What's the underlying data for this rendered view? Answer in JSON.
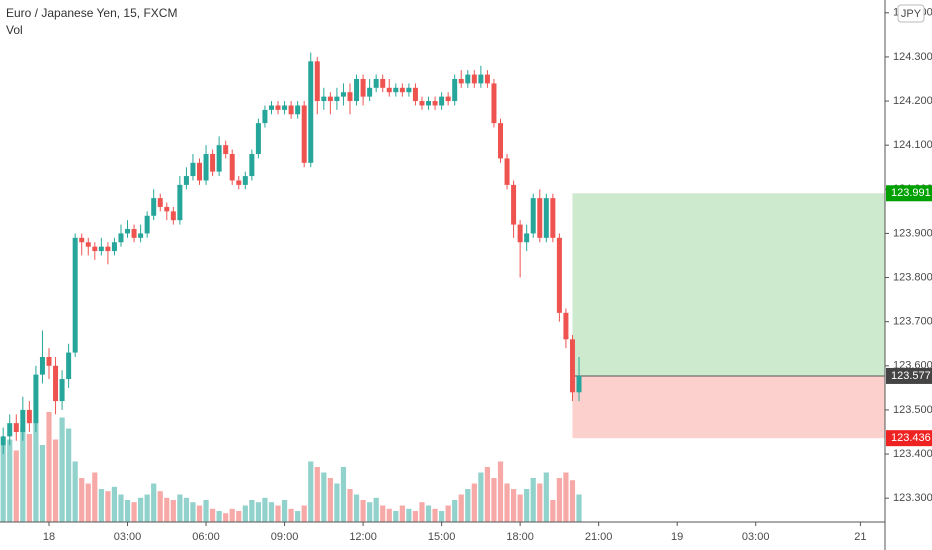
{
  "chart_data": {
    "type": "candlestick",
    "title": "Euro / Japanese Yen, 15, FXCM",
    "volume_label": "Vol",
    "currency_badge": "JPY",
    "x": [
      -1.75,
      -1.5,
      -1.25,
      -1,
      -0.75,
      -0.5,
      -0.25,
      0,
      0.25,
      0.5,
      0.75,
      1,
      1.25,
      1.5,
      1.75,
      2,
      2.25,
      2.5,
      2.75,
      3,
      3.25,
      3.5,
      3.75,
      4,
      4.25,
      4.5,
      4.75,
      5,
      5.25,
      5.5,
      5.75,
      6,
      6.25,
      6.5,
      6.75,
      7,
      7.25,
      7.5,
      7.75,
      8,
      8.25,
      8.5,
      8.75,
      9,
      9.25,
      9.5,
      9.75,
      10,
      10.25,
      10.5,
      10.75,
      11,
      11.25,
      11.5,
      11.75,
      12,
      12.25,
      12.5,
      12.75,
      13,
      13.25,
      13.5,
      13.75,
      14,
      14.25,
      14.5,
      14.75,
      15,
      15.25,
      15.5,
      15.75,
      16,
      16.25,
      16.5,
      16.75,
      17,
      17.25,
      17.5,
      17.75,
      18,
      18.25,
      18.5,
      18.75,
      19,
      19.25,
      19.5,
      19.75,
      20,
      20.25
    ],
    "open": [
      123.42,
      123.44,
      123.47,
      123.45,
      123.5,
      123.47,
      123.58,
      123.62,
      123.6,
      123.52,
      123.57,
      123.63,
      123.89,
      123.88,
      123.87,
      123.86,
      123.87,
      123.86,
      123.88,
      123.9,
      123.91,
      123.89,
      123.9,
      123.94,
      123.98,
      123.96,
      123.95,
      123.93,
      124.01,
      124.03,
      124.06,
      124.02,
      124.08,
      124.04,
      124.1,
      124.08,
      124.02,
      124.01,
      124.03,
      124.08,
      124.15,
      124.18,
      124.19,
      124.18,
      124.19,
      124.17,
      124.19,
      124.06,
      124.29,
      124.2,
      124.21,
      124.2,
      124.21,
      124.22,
      124.2,
      124.25,
      124.21,
      124.23,
      124.25,
      124.23,
      124.22,
      124.23,
      124.22,
      124.23,
      124.2,
      124.19,
      124.2,
      124.19,
      124.21,
      124.2,
      124.25,
      124.24,
      124.26,
      124.24,
      124.26,
      124.24,
      124.15,
      124.07,
      124.01,
      123.92,
      123.88,
      123.9,
      123.98,
      123.89,
      123.98,
      123.89,
      123.72,
      123.66,
      123.54
    ],
    "high": [
      123.46,
      123.49,
      123.49,
      123.53,
      123.52,
      123.6,
      123.68,
      123.64,
      123.62,
      123.59,
      123.65,
      123.9,
      123.9,
      123.89,
      123.88,
      123.89,
      123.88,
      123.89,
      123.92,
      123.93,
      123.92,
      123.92,
      123.95,
      124.0,
      123.99,
      123.97,
      123.96,
      124.03,
      124.05,
      124.08,
      124.07,
      124.1,
      124.09,
      124.12,
      124.11,
      124.09,
      124.03,
      124.04,
      124.09,
      124.16,
      124.19,
      124.2,
      124.2,
      124.2,
      124.2,
      124.2,
      124.2,
      124.31,
      124.3,
      124.23,
      124.22,
      124.23,
      124.24,
      124.24,
      124.26,
      124.26,
      124.25,
      124.26,
      124.26,
      124.25,
      124.24,
      124.24,
      124.24,
      124.24,
      124.21,
      124.21,
      124.21,
      124.22,
      124.22,
      124.26,
      124.27,
      124.27,
      124.27,
      124.28,
      124.27,
      124.25,
      124.16,
      124.08,
      124.02,
      123.93,
      123.92,
      123.99,
      124.0,
      123.99,
      123.99,
      123.9,
      123.73,
      123.67,
      123.62
    ],
    "low": [
      123.4,
      123.42,
      123.43,
      123.43,
      123.45,
      123.45,
      123.56,
      123.57,
      123.49,
      123.5,
      123.55,
      123.62,
      123.85,
      123.85,
      123.84,
      123.85,
      123.83,
      123.85,
      123.87,
      123.89,
      123.88,
      123.88,
      123.89,
      123.93,
      123.95,
      123.93,
      123.92,
      123.92,
      124.0,
      124.02,
      124.01,
      124.01,
      124.03,
      124.03,
      124.07,
      124.01,
      124.0,
      124.0,
      124.02,
      124.07,
      124.14,
      124.17,
      124.17,
      124.17,
      124.16,
      124.16,
      124.05,
      124.05,
      124.17,
      124.18,
      124.17,
      124.18,
      124.19,
      124.17,
      124.19,
      124.19,
      124.2,
      124.22,
      124.22,
      124.21,
      124.21,
      124.21,
      124.21,
      124.19,
      124.18,
      124.18,
      124.18,
      124.18,
      124.19,
      124.19,
      124.23,
      124.23,
      124.23,
      124.23,
      124.23,
      124.14,
      124.06,
      124.0,
      123.89,
      123.8,
      123.86,
      123.89,
      123.88,
      123.88,
      123.88,
      123.7,
      123.64,
      123.52,
      123.52
    ],
    "close": [
      123.44,
      123.47,
      123.45,
      123.5,
      123.47,
      123.58,
      123.62,
      123.6,
      123.52,
      123.57,
      123.63,
      123.89,
      123.88,
      123.87,
      123.86,
      123.87,
      123.86,
      123.88,
      123.9,
      123.91,
      123.89,
      123.9,
      123.94,
      123.98,
      123.96,
      123.95,
      123.93,
      124.01,
      124.03,
      124.06,
      124.02,
      124.08,
      124.04,
      124.1,
      124.08,
      124.02,
      124.01,
      124.03,
      124.08,
      124.15,
      124.18,
      124.19,
      124.18,
      124.19,
      124.17,
      124.19,
      124.06,
      124.29,
      124.2,
      124.21,
      124.2,
      124.21,
      124.22,
      124.2,
      124.25,
      124.21,
      124.23,
      124.25,
      124.23,
      124.22,
      124.23,
      124.22,
      124.23,
      124.2,
      124.19,
      124.2,
      124.19,
      124.21,
      124.2,
      124.25,
      124.24,
      124.26,
      124.24,
      124.26,
      124.24,
      124.15,
      124.07,
      124.01,
      123.92,
      123.88,
      123.9,
      123.98,
      123.89,
      123.98,
      123.89,
      123.72,
      123.66,
      123.54,
      123.577
    ],
    "volume": [
      70,
      75,
      65,
      85,
      80,
      90,
      70,
      100,
      75,
      95,
      85,
      55,
      40,
      35,
      45,
      30,
      28,
      32,
      25,
      20,
      18,
      22,
      25,
      35,
      28,
      22,
      20,
      25,
      22,
      18,
      15,
      20,
      12,
      10,
      8,
      12,
      10,
      15,
      20,
      18,
      22,
      18,
      15,
      20,
      12,
      10,
      15,
      55,
      50,
      45,
      40,
      35,
      50,
      30,
      25,
      20,
      18,
      22,
      15,
      12,
      10,
      15,
      12,
      10,
      18,
      15,
      12,
      10,
      15,
      20,
      25,
      30,
      35,
      45,
      50,
      40,
      55,
      35,
      30,
      25,
      30,
      40,
      35,
      45,
      20,
      40,
      45,
      38,
      25
    ],
    "up_color": "#26a69a",
    "down_color": "#ef5350",
    "position": {
      "x_start": 20,
      "entry": 123.577,
      "target": 123.991,
      "stop": 123.436,
      "entry_label": "123.577",
      "target_label": "123.991",
      "stop_label": "123.436"
    },
    "xlim": [
      -1.872,
      31.94
    ],
    "xticks": [
      {
        "value": 0,
        "label": "18"
      },
      {
        "value": 3,
        "label": "03:00"
      },
      {
        "value": 6,
        "label": "06:00"
      },
      {
        "value": 9,
        "label": "09:00"
      },
      {
        "value": 12,
        "label": "12:00"
      },
      {
        "value": 15,
        "label": "15:00"
      },
      {
        "value": 18,
        "label": "18:00"
      },
      {
        "value": 21,
        "label": "21:00"
      },
      {
        "value": 24,
        "label": "19"
      },
      {
        "value": 27,
        "label": "03:00"
      },
      {
        "value": 31,
        "label": "21"
      }
    ],
    "ylim": [
      123.246,
      124.429
    ],
    "yticks": [
      {
        "value": 123.3,
        "label": "123.300"
      },
      {
        "value": 123.4,
        "label": "123.400"
      },
      {
        "value": 123.5,
        "label": "123.500"
      },
      {
        "value": 123.6,
        "label": "123.600"
      },
      {
        "value": 123.7,
        "label": "123.700"
      },
      {
        "value": 123.8,
        "label": "123.800"
      },
      {
        "value": 123.9,
        "label": "123.900"
      },
      {
        "value": 124.0,
        "label": "124.000"
      },
      {
        "value": 124.1,
        "label": "124.100"
      },
      {
        "value": 124.2,
        "label": "124.200"
      },
      {
        "value": 124.3,
        "label": "124.300"
      },
      {
        "value": 124.4,
        "label": "124.400"
      }
    ],
    "grid": false
  }
}
